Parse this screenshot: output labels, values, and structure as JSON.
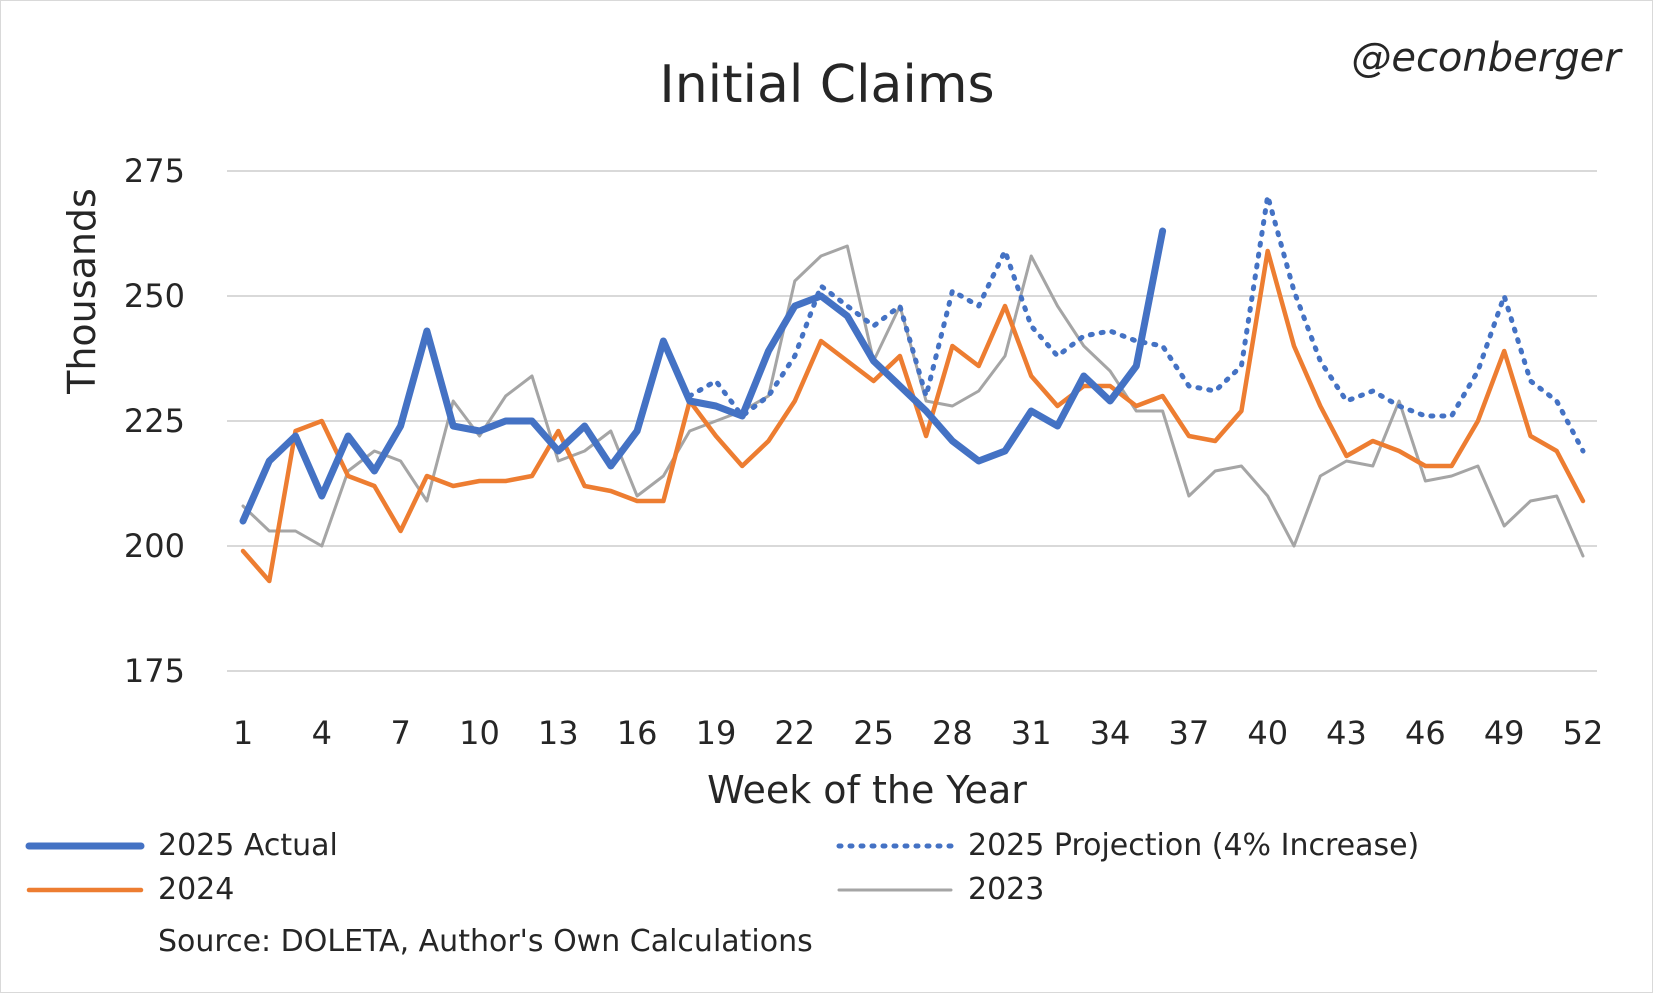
{
  "chart_data": {
    "type": "line",
    "title": "Initial Claims",
    "handle": "@econberger",
    "xlabel": "Week of the Year",
    "ylabel": "Thousands",
    "ylim": [
      175,
      275
    ],
    "yticks": [
      "175",
      "200",
      "225",
      "250",
      "275"
    ],
    "xlim": [
      1,
      52
    ],
    "xticks": [
      "1",
      "4",
      "7",
      "10",
      "13",
      "16",
      "19",
      "22",
      "25",
      "28",
      "31",
      "34",
      "37",
      "40",
      "43",
      "46",
      "49",
      "52"
    ],
    "grid": "horizontal",
    "legend_position": "bottom",
    "source": "Source: DOLETA, Author's Own Calculations",
    "series": [
      {
        "name": "2025 Actual",
        "color": "#4472c4",
        "style": "solid-thick",
        "x": [
          1,
          2,
          3,
          4,
          5,
          6,
          7,
          8,
          9,
          10,
          11,
          12,
          13,
          14,
          15,
          16,
          17,
          18,
          19,
          20,
          21,
          22,
          23,
          24,
          25,
          26,
          27,
          28,
          29,
          30,
          31,
          32,
          33,
          34,
          35,
          36
        ],
        "values": [
          205,
          217,
          222,
          210,
          222,
          215,
          224,
          243,
          224,
          223,
          225,
          225,
          219,
          224,
          216,
          223,
          241,
          229,
          228,
          226,
          239,
          248,
          250,
          246,
          237,
          232,
          227,
          221,
          217,
          219,
          227,
          224,
          234,
          229,
          236,
          263
        ]
      },
      {
        "name": "2025 Projection (4% Increase)",
        "color": "#4472c4",
        "style": "dotted",
        "x": [
          18,
          19,
          20,
          21,
          22,
          23,
          24,
          25,
          26,
          27,
          28,
          29,
          30,
          31,
          32,
          33,
          34,
          35,
          36,
          37,
          38,
          39,
          40,
          41,
          42,
          43,
          44,
          45,
          46,
          47,
          48,
          49,
          50,
          51,
          52
        ],
        "values": [
          230,
          233,
          226,
          230,
          238,
          252,
          248,
          244,
          248,
          230,
          251,
          248,
          259,
          244,
          238,
          242,
          243,
          241,
          240,
          232,
          231,
          236,
          270,
          251,
          237,
          229,
          231,
          228,
          226,
          226,
          235,
          250,
          233,
          229,
          219
        ]
      },
      {
        "name": "2024",
        "color": "#ed7d31",
        "style": "solid",
        "x": [
          1,
          2,
          3,
          4,
          5,
          6,
          7,
          8,
          9,
          10,
          11,
          12,
          13,
          14,
          15,
          16,
          17,
          18,
          19,
          20,
          21,
          22,
          23,
          24,
          25,
          26,
          27,
          28,
          29,
          30,
          31,
          32,
          33,
          34,
          35,
          36,
          37,
          38,
          39,
          40,
          41,
          42,
          43,
          44,
          45,
          46,
          47,
          48,
          49,
          50,
          51,
          52
        ],
        "values": [
          199,
          193,
          223,
          225,
          214,
          212,
          203,
          214,
          212,
          213,
          213,
          214,
          223,
          212,
          211,
          209,
          209,
          229,
          222,
          216,
          221,
          229,
          241,
          237,
          233,
          238,
          222,
          240,
          236,
          248,
          234,
          228,
          232,
          232,
          228,
          230,
          222,
          221,
          227,
          259,
          240,
          228,
          218,
          221,
          219,
          216,
          216,
          225,
          239,
          222,
          219,
          209
        ]
      },
      {
        "name": "2023",
        "color": "#a5a5a5",
        "style": "solid-thin",
        "x": [
          1,
          2,
          3,
          4,
          5,
          6,
          7,
          8,
          9,
          10,
          11,
          12,
          13,
          14,
          15,
          16,
          17,
          18,
          19,
          20,
          21,
          22,
          23,
          24,
          25,
          26,
          27,
          28,
          29,
          30,
          31,
          32,
          33,
          34,
          35,
          36,
          37,
          38,
          39,
          40,
          41,
          42,
          43,
          44,
          45,
          46,
          47,
          48,
          49,
          50,
          51,
          52
        ],
        "values": [
          208,
          203,
          203,
          200,
          215,
          219,
          217,
          209,
          229,
          222,
          230,
          234,
          217,
          219,
          223,
          210,
          214,
          223,
          225,
          227,
          230,
          253,
          258,
          260,
          237,
          248,
          229,
          228,
          231,
          238,
          258,
          248,
          240,
          235,
          227,
          227,
          210,
          215,
          216,
          210,
          200,
          214,
          217,
          216,
          229,
          213,
          214,
          216,
          204,
          209,
          210,
          198
        ]
      }
    ]
  }
}
